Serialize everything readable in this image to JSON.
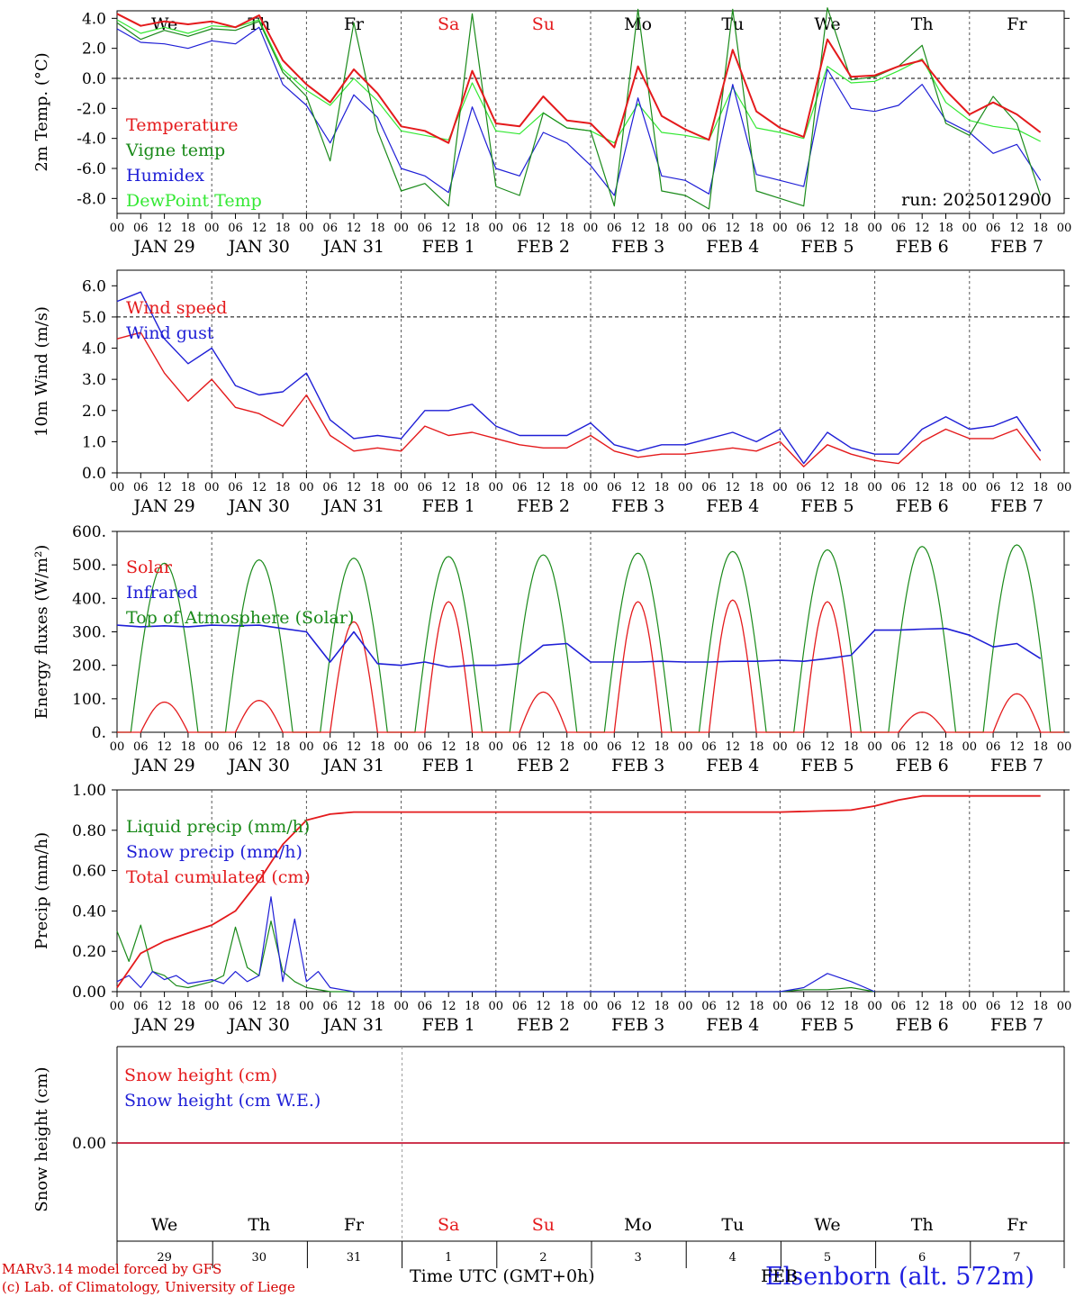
{
  "colors": {
    "red": "#e41a1c",
    "dark_green": "#1a8a1a",
    "blue": "#1f1fd6",
    "light_green": "#33e833",
    "weekend": "#e41a1c",
    "grid": "#555555"
  },
  "days": [
    "We",
    "Th",
    "Fr",
    "Sa",
    "Su",
    "Mo",
    "Tu",
    "We",
    "Th",
    "Fr"
  ],
  "weekend_days": [
    3,
    4
  ],
  "hour_ticks": [
    "00",
    "06",
    "12",
    "18"
  ],
  "dates": [
    "JAN 29",
    "JAN 30",
    "JAN 31",
    "FEB 1",
    "FEB 2",
    "FEB 3",
    "FEB 4",
    "FEB 5",
    "FEB 6",
    "FEB 7"
  ],
  "bottom_days": [
    "29",
    "30",
    "31",
    "1",
    "2",
    "3",
    "4",
    "5",
    "6",
    "7"
  ],
  "footer": {
    "credit_line1": "MARv3.14 model forced by GFS",
    "credit_line2": "(c) Lab. of Climatology, University of Liege",
    "xlabel": "Time UTC (GMT+0h)",
    "station": "Elsenborn (alt. 572m)",
    "feb_label": "FEB"
  },
  "chart_data": [
    {
      "type": "line",
      "ylabel": "2m Temp. (°C)",
      "ylim": [
        -9.0,
        4.5
      ],
      "yticks": [
        "4.0",
        "2.0",
        "0.0",
        "-2.0",
        "-4.0",
        "-6.0",
        "-8.0"
      ],
      "ytick_values": [
        4,
        2,
        0,
        -2,
        -4,
        -6,
        -8
      ],
      "annotation": "run: 2025012900",
      "x_hours": [
        0,
        6,
        12,
        18,
        24,
        30,
        36,
        42,
        48,
        54,
        60,
        66,
        72,
        78,
        84,
        90,
        96,
        102,
        108,
        114,
        120,
        126,
        132,
        138,
        144,
        150,
        156,
        162,
        168,
        174,
        180,
        186,
        192,
        198,
        204,
        210,
        216,
        222,
        228,
        234
      ],
      "series": [
        {
          "name": "Temperature",
          "color": "red",
          "values": [
            4.3,
            3.5,
            3.8,
            3.6,
            3.8,
            3.4,
            4.2,
            1.2,
            -0.4,
            -1.6,
            0.6,
            -1.0,
            -3.2,
            -3.5,
            -4.3,
            0.5,
            -3.0,
            -3.2,
            -1.2,
            -2.8,
            -3.0,
            -4.6,
            0.8,
            -2.5,
            -3.4,
            -4.1,
            1.9,
            -2.2,
            -3.3,
            -3.9,
            2.6,
            0.1,
            0.2,
            0.8,
            1.2,
            -0.8,
            -2.4,
            -1.6,
            -2.4,
            -3.6
          ]
        },
        {
          "name": "Vigne temp",
          "color": "dark_green",
          "values": [
            3.7,
            2.6,
            3.2,
            2.8,
            3.3,
            3.2,
            3.8,
            0.4,
            -1.2,
            -5.5,
            3.7,
            -3.5,
            -7.5,
            -7.0,
            -8.5,
            4.3,
            -7.2,
            -7.8,
            -2.3,
            -3.3,
            -3.5,
            -8.5,
            4.6,
            -7.5,
            -7.8,
            -8.7,
            4.6,
            -7.5,
            -8.0,
            -8.5,
            4.7,
            -0.1,
            0.1,
            0.8,
            2.2,
            -3.0,
            -3.8,
            -1.2,
            -3.0,
            -7.8
          ]
        },
        {
          "name": "Humidex",
          "color": "blue",
          "values": [
            3.3,
            2.4,
            2.3,
            2.0,
            2.5,
            2.3,
            3.4,
            -0.4,
            -1.8,
            -4.3,
            -1.1,
            -2.6,
            -6.0,
            -6.5,
            -7.6,
            -1.9,
            -6.0,
            -6.5,
            -3.6,
            -4.3,
            -5.8,
            -7.8,
            -1.3,
            -6.5,
            -6.8,
            -7.7,
            -0.4,
            -6.4,
            -6.8,
            -7.2,
            0.6,
            -2.0,
            -2.2,
            -1.8,
            -0.4,
            -2.8,
            -3.6,
            -5.0,
            -4.4,
            -6.8
          ]
        },
        {
          "name": "DewPoint Temp",
          "color": "light_green",
          "values": [
            3.9,
            3.0,
            3.4,
            3.0,
            3.5,
            3.4,
            3.9,
            0.6,
            -0.8,
            -1.8,
            0.0,
            -1.5,
            -3.5,
            -3.8,
            -4.1,
            -0.3,
            -3.5,
            -3.7,
            -2.3,
            -3.3,
            -3.5,
            -4.3,
            -1.7,
            -3.6,
            -3.8,
            -4.1,
            -0.6,
            -3.3,
            -3.6,
            -4.0,
            0.8,
            -0.3,
            -0.2,
            0.5,
            1.3,
            -1.6,
            -2.8,
            -3.2,
            -3.4,
            -4.2
          ]
        }
      ]
    },
    {
      "type": "line",
      "ylabel": "10m Wind (m/s)",
      "ylim": [
        0,
        6.5
      ],
      "yticks": [
        "6.0",
        "5.0",
        "4.0",
        "3.0",
        "2.0",
        "1.0",
        "0.0"
      ],
      "ytick_values": [
        6,
        5,
        4,
        3,
        2,
        1,
        0
      ],
      "ref_line": 5.0,
      "x_hours": [
        0,
        6,
        12,
        18,
        24,
        30,
        36,
        42,
        48,
        54,
        60,
        66,
        72,
        78,
        84,
        90,
        96,
        102,
        108,
        114,
        120,
        126,
        132,
        138,
        144,
        150,
        156,
        162,
        168,
        174,
        180,
        186,
        192,
        198,
        204,
        210,
        216,
        222,
        228,
        234
      ],
      "series": [
        {
          "name": "Wind speed",
          "color": "red",
          "values": [
            4.3,
            4.5,
            3.2,
            2.3,
            3.0,
            2.1,
            1.9,
            1.5,
            2.5,
            1.2,
            0.7,
            0.8,
            0.7,
            1.5,
            1.2,
            1.3,
            1.1,
            0.9,
            0.8,
            0.8,
            1.2,
            0.7,
            0.5,
            0.6,
            0.6,
            0.7,
            0.8,
            0.7,
            1.0,
            0.2,
            0.9,
            0.6,
            0.4,
            0.3,
            1.0,
            1.4,
            1.1,
            1.1,
            1.4,
            0.4
          ]
        },
        {
          "name": "Wind gust",
          "color": "blue",
          "values": [
            5.5,
            5.8,
            4.3,
            3.5,
            4.0,
            2.8,
            2.5,
            2.6,
            3.2,
            1.7,
            1.1,
            1.2,
            1.1,
            2.0,
            2.0,
            2.2,
            1.5,
            1.2,
            1.2,
            1.2,
            1.6,
            0.9,
            0.7,
            0.9,
            0.9,
            1.1,
            1.3,
            1.0,
            1.4,
            0.3,
            1.3,
            0.8,
            0.6,
            0.6,
            1.4,
            1.8,
            1.4,
            1.5,
            1.8,
            0.7
          ]
        }
      ]
    },
    {
      "type": "line",
      "ylabel": "Energy fluxes (W/m²)",
      "ylim": [
        0,
        600
      ],
      "yticks": [
        "600.",
        "500.",
        "400.",
        "300.",
        "200.",
        "100.",
        "0."
      ],
      "ytick_values": [
        600,
        500,
        400,
        300,
        200,
        100,
        0
      ],
      "series": [
        {
          "name": "Solar",
          "color": "red",
          "peak_hour": 12,
          "values": [
            90,
            95,
            330,
            390,
            120,
            390,
            395,
            390,
            60,
            115
          ]
        },
        {
          "name": "Infrared",
          "color": "blue",
          "x_hours": [
            0,
            6,
            12,
            18,
            24,
            30,
            36,
            42,
            48,
            54,
            60,
            66,
            72,
            78,
            84,
            90,
            96,
            102,
            108,
            114,
            120,
            126,
            132,
            138,
            144,
            150,
            156,
            162,
            168,
            174,
            180,
            186,
            192,
            198,
            204,
            210,
            216,
            222,
            228,
            234
          ],
          "values": [
            320,
            315,
            318,
            315,
            320,
            318,
            320,
            310,
            300,
            210,
            300,
            205,
            200,
            210,
            195,
            200,
            200,
            205,
            260,
            265,
            210,
            210,
            210,
            212,
            210,
            210,
            212,
            212,
            215,
            212,
            220,
            230,
            305,
            305,
            308,
            310,
            290,
            255,
            265,
            220
          ]
        },
        {
          "name": "Top of Atmosphere (Solar)",
          "color": "dark_green",
          "peak_hour": 12,
          "values": [
            505,
            515,
            520,
            525,
            530,
            535,
            540,
            545,
            555,
            560
          ]
        }
      ]
    },
    {
      "type": "line",
      "ylabel": "Precip (mm/h)",
      "ylim": [
        0,
        1.0
      ],
      "yticks": [
        "1.00",
        "0.80",
        "0.60",
        "0.40",
        "0.20",
        "0.00"
      ],
      "ytick_values": [
        1.0,
        0.8,
        0.6,
        0.4,
        0.2,
        0.0
      ],
      "series": [
        {
          "name": "Liquid precip (mm/h)",
          "color": "dark_green",
          "x_hours": [
            0,
            3,
            6,
            9,
            12,
            15,
            18,
            24,
            27,
            30,
            33,
            36,
            39,
            42,
            45,
            48,
            54,
            60,
            168,
            174,
            180,
            186,
            192
          ],
          "values": [
            0.3,
            0.15,
            0.33,
            0.1,
            0.08,
            0.03,
            0.02,
            0.05,
            0.08,
            0.32,
            0.12,
            0.08,
            0.35,
            0.1,
            0.05,
            0.02,
            0,
            0,
            0,
            0.01,
            0.01,
            0.02,
            0
          ]
        },
        {
          "name": "Snow precip (mm/h)",
          "color": "blue",
          "x_hours": [
            0,
            3,
            6,
            9,
            12,
            15,
            18,
            24,
            27,
            30,
            33,
            36,
            39,
            42,
            45,
            48,
            51,
            54,
            60,
            168,
            174,
            180,
            186,
            192
          ],
          "values": [
            0.05,
            0.08,
            0.02,
            0.1,
            0.06,
            0.08,
            0.04,
            0.06,
            0.04,
            0.1,
            0.05,
            0.08,
            0.47,
            0.05,
            0.36,
            0.05,
            0.1,
            0.02,
            0,
            0,
            0.02,
            0.09,
            0.05,
            0
          ]
        },
        {
          "name": "Total cumulated (cm)",
          "color": "red",
          "x_hours": [
            0,
            6,
            12,
            18,
            24,
            30,
            36,
            42,
            48,
            54,
            60,
            72,
            96,
            120,
            144,
            168,
            186,
            192,
            198,
            204,
            234
          ],
          "values": [
            0.02,
            0.19,
            0.25,
            0.29,
            0.33,
            0.4,
            0.55,
            0.73,
            0.85,
            0.88,
            0.89,
            0.89,
            0.89,
            0.89,
            0.89,
            0.89,
            0.9,
            0.92,
            0.95,
            0.97,
            0.97
          ]
        }
      ]
    },
    {
      "type": "line",
      "ylabel": "Snow height (cm)",
      "yticks": [
        "0.00"
      ],
      "ytick_values": [
        0
      ],
      "series": [
        {
          "name": "Snow height (cm)",
          "color": "red",
          "values": [
            0,
            0
          ]
        },
        {
          "name": "Snow height (cm W.E.)",
          "color": "blue",
          "values": [
            0,
            0
          ]
        }
      ]
    }
  ]
}
